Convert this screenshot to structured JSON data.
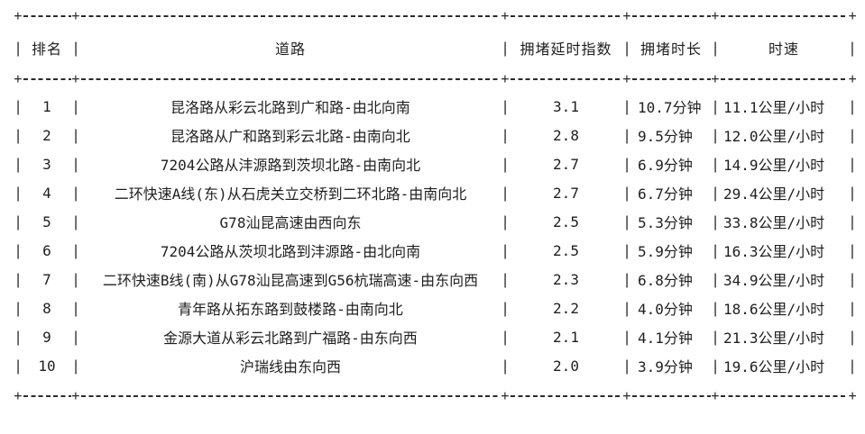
{
  "table": {
    "columns": [
      {
        "key": "rank",
        "label": "排名"
      },
      {
        "key": "road",
        "label": "道路"
      },
      {
        "key": "delay_index",
        "label": "拥堵延时指数"
      },
      {
        "key": "duration",
        "label": "拥堵时长"
      },
      {
        "key": "speed",
        "label": "时速"
      }
    ],
    "rows": [
      {
        "rank": "1",
        "road": "昆洛路从彩云北路到广和路-由北向南",
        "delay_index": "3.1",
        "duration": "10.7分钟",
        "speed": "11.1公里/小时"
      },
      {
        "rank": "2",
        "road": "昆洛路从广和路到彩云北路-由南向北",
        "delay_index": "2.8",
        "duration": "9.5分钟",
        "speed": "12.0公里/小时"
      },
      {
        "rank": "3",
        "road": "7204公路从沣源路到茨坝北路-由南向北",
        "delay_index": "2.7",
        "duration": "6.9分钟",
        "speed": "14.9公里/小时"
      },
      {
        "rank": "4",
        "road": "二环快速A线(东)从石虎关立交桥到二环北路-由南向北",
        "delay_index": "2.7",
        "duration": "6.7分钟",
        "speed": "29.4公里/小时"
      },
      {
        "rank": "5",
        "road": "G78汕昆高速由西向东",
        "delay_index": "2.5",
        "duration": "5.3分钟",
        "speed": "33.8公里/小时"
      },
      {
        "rank": "6",
        "road": "7204公路从茨坝北路到沣源路-由北向南",
        "delay_index": "2.5",
        "duration": "5.9分钟",
        "speed": "16.3公里/小时"
      },
      {
        "rank": "7",
        "road": "二环快速B线(南)从G78汕昆高速到G56杭瑞高速-由东向西",
        "delay_index": "2.3",
        "duration": "6.8分钟",
        "speed": "34.9公里/小时"
      },
      {
        "rank": "8",
        "road": "青年路从拓东路到鼓楼路-由南向北",
        "delay_index": "2.2",
        "duration": "4.0分钟",
        "speed": "18.6公里/小时"
      },
      {
        "rank": "9",
        "road": "金源大道从彩云北路到广福路-由东向西",
        "delay_index": "2.1",
        "duration": "4.1分钟",
        "speed": "21.3公里/小时"
      },
      {
        "rank": "10",
        "road": "沪瑞线由东向西",
        "delay_index": "2.0",
        "duration": "3.9分钟",
        "speed": "19.6公里/小时"
      }
    ]
  },
  "colors": {
    "text": "#1f1f1f",
    "line": "#2b2b2b",
    "background": "#ffffff"
  },
  "chart_data": {
    "type": "table",
    "title": "",
    "columns": [
      "排名",
      "道路",
      "拥堵延时指数",
      "拥堵时长",
      "时速"
    ],
    "rows": [
      [
        1,
        "昆洛路从彩云北路到广和路-由北向南",
        3.1,
        "10.7分钟",
        "11.1公里/小时"
      ],
      [
        2,
        "昆洛路从广和路到彩云北路-由南向北",
        2.8,
        "9.5分钟",
        "12.0公里/小时"
      ],
      [
        3,
        "7204公路从沣源路到茨坝北路-由南向北",
        2.7,
        "6.9分钟",
        "14.9公里/小时"
      ],
      [
        4,
        "二环快速A线(东)从石虎关立交桥到二环北路-由南向北",
        2.7,
        "6.7分钟",
        "29.4公里/小时"
      ],
      [
        5,
        "G78汕昆高速由西向东",
        2.5,
        "5.3分钟",
        "33.8公里/小时"
      ],
      [
        6,
        "7204公路从茨坝北路到沣源路-由北向南",
        2.5,
        "5.9分钟",
        "16.3公里/小时"
      ],
      [
        7,
        "二环快速B线(南)从G78汕昆高速到G56杭瑞高速-由东向西",
        2.3,
        "6.8分钟",
        "34.9公里/小时"
      ],
      [
        8,
        "青年路从拓东路到鼓楼路-由南向北",
        2.2,
        "4.0分钟",
        "18.6公里/小时"
      ],
      [
        9,
        "金源大道从彩云北路到广福路-由东向西",
        2.1,
        "4.1分钟",
        "21.3公里/小时"
      ],
      [
        10,
        "沪瑞线由东向西",
        2.0,
        "3.9分钟",
        "19.6公里/小时"
      ]
    ]
  }
}
